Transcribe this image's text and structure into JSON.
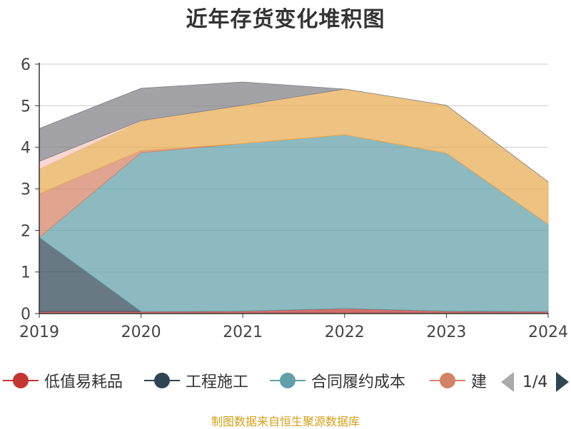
{
  "chart_data": {
    "type": "area",
    "title": "近年存货变化堆积图",
    "x": [
      "2019",
      "2020",
      "2021",
      "2022",
      "2023",
      "2024"
    ],
    "y_ticks": [
      "0",
      "1",
      "2",
      "3",
      "4",
      "5",
      "6"
    ],
    "ylim": [
      0,
      6
    ],
    "stacked": true,
    "grid": true,
    "series": [
      {
        "name": "低值易耗品",
        "color": "#c23531",
        "values": [
          0.05,
          0.05,
          0.06,
          0.12,
          0.06,
          0.05
        ]
      },
      {
        "name": "工程施工",
        "color": "#2f4554",
        "values": [
          1.78,
          0.0,
          0.0,
          0.0,
          0.0,
          0.0
        ]
      },
      {
        "name": "合同履约成本",
        "color": "#61a0a8",
        "values": [
          0.0,
          3.82,
          4.03,
          4.18,
          3.8,
          2.1
        ]
      },
      {
        "name": "建",
        "color": "#d48265",
        "values": [
          1.05,
          0.05,
          0.0,
          0.0,
          0.0,
          0.0
        ]
      },
      {
        "name": "",
        "color": "#e8ab4f",
        "values": [
          0.6,
          0.72,
          0.92,
          1.1,
          1.15,
          1.02
        ]
      },
      {
        "name": "",
        "color": "#f2c9c2",
        "values": [
          0.18,
          0.0,
          0.0,
          0.0,
          0.0,
          0.0
        ]
      },
      {
        "name": "",
        "color": "#7f7f85",
        "values": [
          0.79,
          0.78,
          0.56,
          0.0,
          0.0,
          0.0
        ]
      }
    ]
  },
  "legend": {
    "items": [
      {
        "label": "低值易耗品",
        "color": "#c23531"
      },
      {
        "label": "工程施工",
        "color": "#2f4554"
      },
      {
        "label": "合同履约成本",
        "color": "#61a0a8"
      },
      {
        "label": "建",
        "color": "#d48265"
      }
    ],
    "page": "1/4",
    "prev_color": "#aaaaaa",
    "next_color": "#2f4554"
  },
  "source_note": "制图数据来自恒生聚源数据库"
}
